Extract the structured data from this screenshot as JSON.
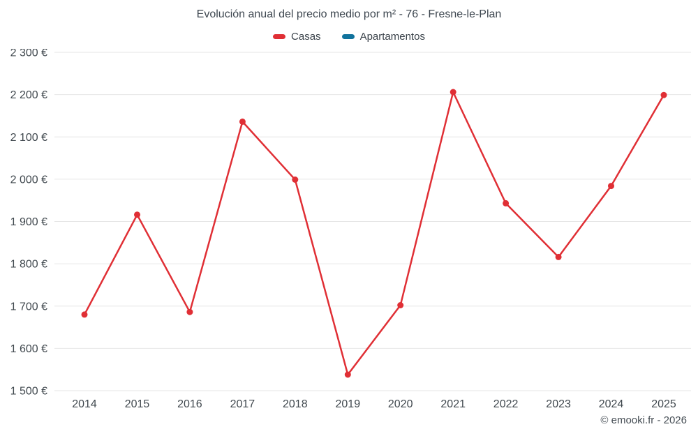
{
  "page": {
    "footer": "© emooki.fr - 2026"
  },
  "chart_data": {
    "type": "line",
    "title": "Evolución anual del precio medio por m² - 76 - Fresne-le-Plan",
    "x": [
      "2014",
      "2015",
      "2016",
      "2017",
      "2018",
      "2019",
      "2020",
      "2021",
      "2022",
      "2023",
      "2024",
      "2025"
    ],
    "series": [
      {
        "name": "Casas",
        "color": "#e02f35",
        "values": [
          1680,
          1916,
          1686,
          2136,
          1999,
          1538,
          1702,
          2206,
          1943,
          1816,
          1984,
          2199
        ]
      },
      {
        "name": "Apartamentos",
        "color": "#11739d",
        "values": []
      }
    ],
    "ylim": [
      1500,
      2300
    ],
    "yticks": [
      {
        "value": 2300,
        "label": "2 300 €"
      },
      {
        "value": 2200,
        "label": "2 200 €"
      },
      {
        "value": 2100,
        "label": "2 100 €"
      },
      {
        "value": 2000,
        "label": "2 000 €"
      },
      {
        "value": 1900,
        "label": "1 900 €"
      },
      {
        "value": 1800,
        "label": "1 800 €"
      },
      {
        "value": 1700,
        "label": "1 700 €"
      },
      {
        "value": 1600,
        "label": "1 600 €"
      },
      {
        "value": 1500,
        "label": "1 500 €"
      }
    ],
    "grid": "horizontal",
    "grid_color": "#e6e6e6",
    "legend_position": "top"
  }
}
